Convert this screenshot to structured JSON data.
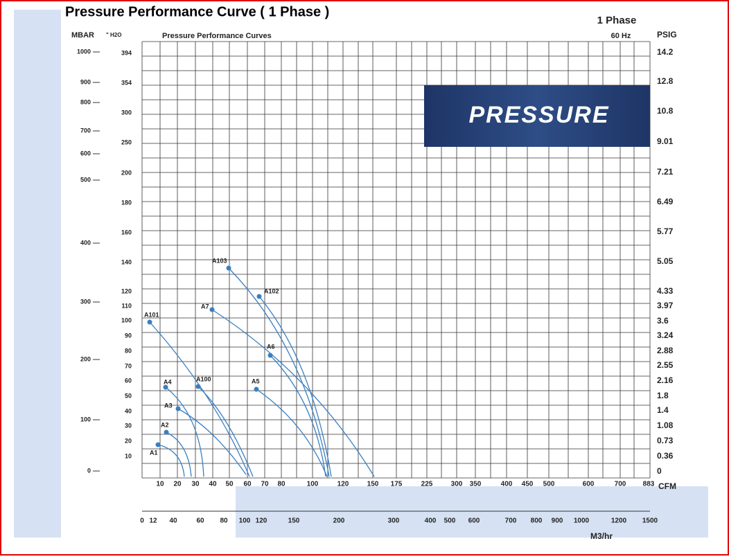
{
  "title": "Pressure Performance Curve ( 1 Phase )",
  "chart_title": "Pressure Performance Curves",
  "phase": "1 Phase",
  "frequency": "60 Hz",
  "axis_units": {
    "mbar": "MBAR",
    "h2o": "\" H2O",
    "psig": "PSIG",
    "cfm": "CFM",
    "m3hr": "M3/hr"
  },
  "banner": "PRESSURE",
  "mbar_ticks": [
    "1000",
    "900",
    "800",
    "700",
    "600",
    "500",
    "400",
    "300",
    "200",
    "100",
    "0"
  ],
  "h2o_ticks": [
    "394",
    "354",
    "300",
    "250",
    "200",
    "180",
    "160",
    "140",
    "120",
    "110",
    "100",
    "90",
    "80",
    "70",
    "60",
    "50",
    "40",
    "30",
    "20",
    "10"
  ],
  "psig_ticks": [
    "14.2",
    "12.8",
    "10.8",
    "9.01",
    "7.21",
    "6.49",
    "5.77",
    "5.05",
    "4.33",
    "3.97",
    "3.6",
    "3.24",
    "2.88",
    "2.55",
    "2.16",
    "1.8",
    "1.4",
    "1.08",
    "0.73",
    "0.36",
    "0"
  ],
  "cfm_ticks": [
    "10",
    "20",
    "30",
    "40",
    "50",
    "60",
    "70",
    "80",
    "100",
    "120",
    "150",
    "175",
    "225",
    "300",
    "350",
    "400",
    "450",
    "500",
    "600",
    "700",
    "883"
  ],
  "m3hr_ticks": [
    "0",
    "12",
    "40",
    "60",
    "80",
    "100",
    "120",
    "150",
    "200",
    "300",
    "400",
    "500",
    "600",
    "700",
    "800",
    "900",
    "1000",
    "1200",
    "1500"
  ],
  "curves": [
    "A1",
    "A2",
    "A3",
    "A4",
    "A100",
    "A101",
    "A7",
    "A103",
    "A102",
    "A6",
    "A5"
  ]
}
